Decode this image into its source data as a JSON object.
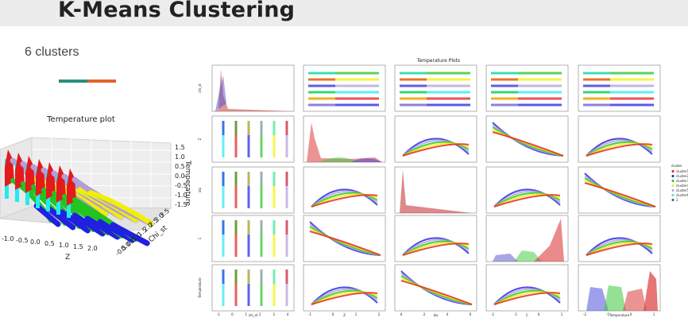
{
  "header": {
    "title": "K-Means Clustering"
  },
  "summary": {
    "clusters_text": "6 clusters"
  },
  "accent": {
    "colors": [
      "#2a8e80",
      "#e2632a"
    ]
  },
  "plot3d": {
    "title": "Temperature plot",
    "xlabel": "Z",
    "ylabel": "Chi_st",
    "zlabel": "Temperature",
    "x_ticks": [
      "-1.0",
      "-0.5",
      "0.0",
      "0.5",
      "1.0",
      "1.5",
      "2.0"
    ],
    "y_ticks": [
      "-0.5",
      "0.0",
      "0.5",
      "1.0",
      "1.5",
      "2.0",
      "2.5",
      "3.0",
      "3.5"
    ],
    "z_ticks": [
      "1.5",
      "1.0",
      "0.5",
      "0.0",
      "-0.5",
      "-1.0",
      "-1.5"
    ]
  },
  "pairplot": {
    "title": "Temperature Plots",
    "variables": [
      "Chi_st",
      "Z",
      "dix",
      "C",
      "Temperature"
    ],
    "x_axis_labels": [
      "chi_st",
      "Z",
      "dix",
      "C",
      "Temperature"
    ],
    "y_axis_labels": [
      "chi_st",
      "Z",
      "dix",
      "C",
      "Temperature"
    ],
    "x_ticks": [
      [
        "-1",
        "0",
        "1",
        "2",
        "3",
        "4"
      ],
      [
        "-1",
        "0",
        "1",
        "2"
      ],
      [
        "0",
        "2",
        "4",
        "6"
      ],
      [
        "-2",
        "-1",
        "0",
        "1"
      ],
      [
        "-2",
        "-1",
        "0",
        "1"
      ]
    ],
    "legend": {
      "title": "cluster",
      "entries": [
        {
          "label": "cluster1",
          "color": "#e41a1c"
        },
        {
          "label": "cluster2",
          "color": "#1f1fd6"
        },
        {
          "label": "cluster3",
          "color": "#22c422"
        },
        {
          "label": "cluster4",
          "color": "#e8e832"
        },
        {
          "label": "cluster5",
          "color": "#b39ddb"
        },
        {
          "label": "cluster6",
          "color": "#33e6f0"
        },
        {
          "label": "1",
          "color": "#555555"
        }
      ]
    }
  },
  "cluster_colors": {
    "c1": "#e41a1c",
    "c2": "#2020e0",
    "c3": "#22c422",
    "c4": "#f0f000",
    "c5": "#b39ddb",
    "c6": "#22eaf2"
  }
}
